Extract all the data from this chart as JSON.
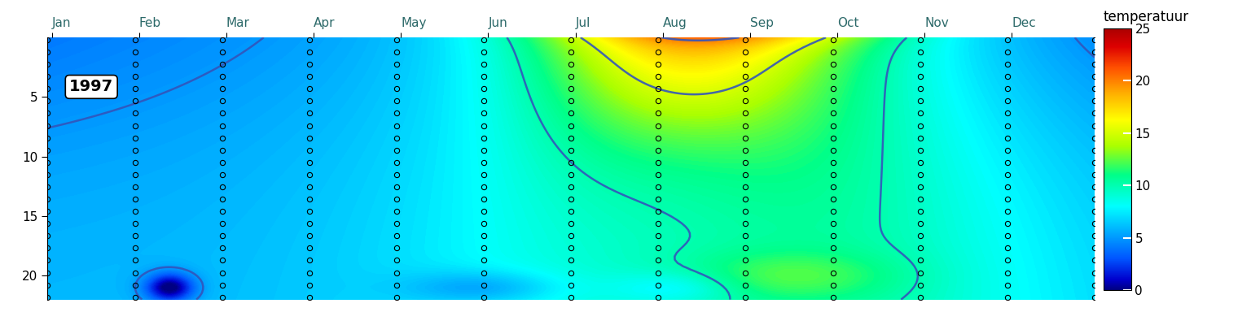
{
  "year_label": "1997",
  "months": [
    "Jan",
    "Feb",
    "Mar",
    "Apr",
    "May",
    "Jun",
    "Jul",
    "Aug",
    "Sep",
    "Oct",
    "Nov",
    "Dec"
  ],
  "colorbar_label": "temperatuur",
  "colorbar_ticks": [
    0,
    5,
    10,
    15,
    20,
    25
  ],
  "vmin": 0,
  "vmax": 25,
  "depth_max": 22,
  "n_depth": 80,
  "n_time": 365,
  "background_color": "#ffffff",
  "contour_color": "#3355bb",
  "contour_linewidth": 1.8,
  "contour_levels": [
    5,
    10,
    15,
    20
  ],
  "figsize": [
    15.36,
    3.84
  ],
  "dpi": 100,
  "colormap_nodes": [
    [
      0.0,
      "#00007F"
    ],
    [
      0.04,
      "#0000CD"
    ],
    [
      0.12,
      "#0055FF"
    ],
    [
      0.22,
      "#00AAFF"
    ],
    [
      0.32,
      "#00FFFF"
    ],
    [
      0.44,
      "#00FF88"
    ],
    [
      0.55,
      "#AAFF00"
    ],
    [
      0.65,
      "#FFFF00"
    ],
    [
      0.75,
      "#FFB000"
    ],
    [
      0.85,
      "#FF5000"
    ],
    [
      0.93,
      "#DD0000"
    ],
    [
      1.0,
      "#AA0000"
    ]
  ]
}
